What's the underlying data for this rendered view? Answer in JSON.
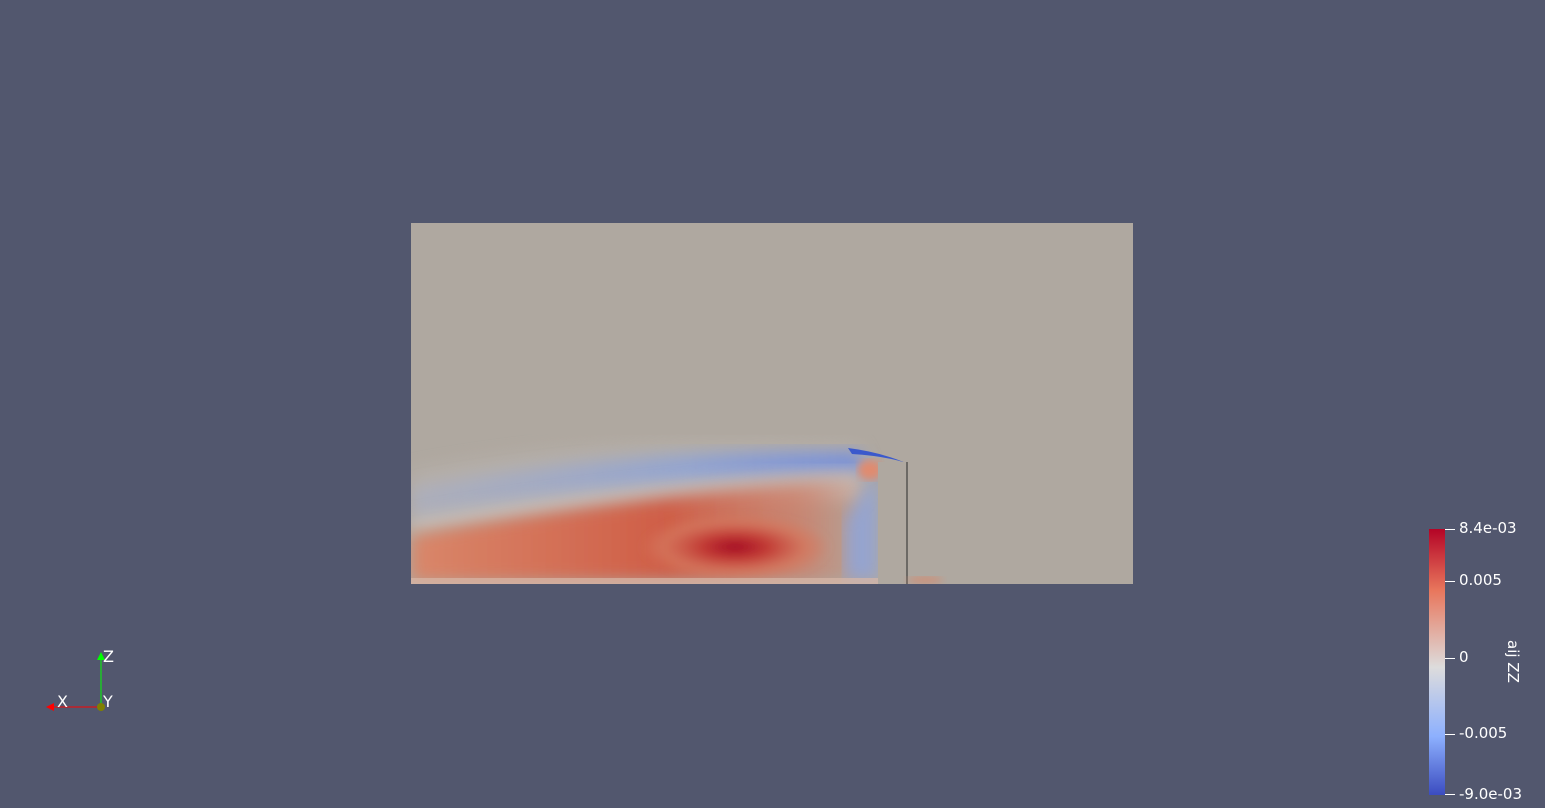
{
  "colorbar": {
    "title": "aij ZZ",
    "max_label": "8.4e-03",
    "min_label": "-9.0e-03",
    "ticks": [
      {
        "label": "8.4e-03",
        "value": 0.0084
      },
      {
        "label": "0.005",
        "value": 0.005
      },
      {
        "label": "0",
        "value": 0
      },
      {
        "label": "-0.005",
        "value": -0.005
      },
      {
        "label": "-9.0e-03",
        "value": -0.009
      }
    ],
    "colors": {
      "high": "#b40426",
      "mid": "#dddcdc",
      "low": "#3b4cc0"
    }
  },
  "axes_triad": {
    "z_label": "Z",
    "x_label": "X",
    "y_label": "Y",
    "colors": {
      "x": "#ff0000",
      "y": "#ffff00",
      "z": "#00ff00"
    }
  },
  "background_color": "#52576e",
  "field_base_color": "#afa8a0"
}
